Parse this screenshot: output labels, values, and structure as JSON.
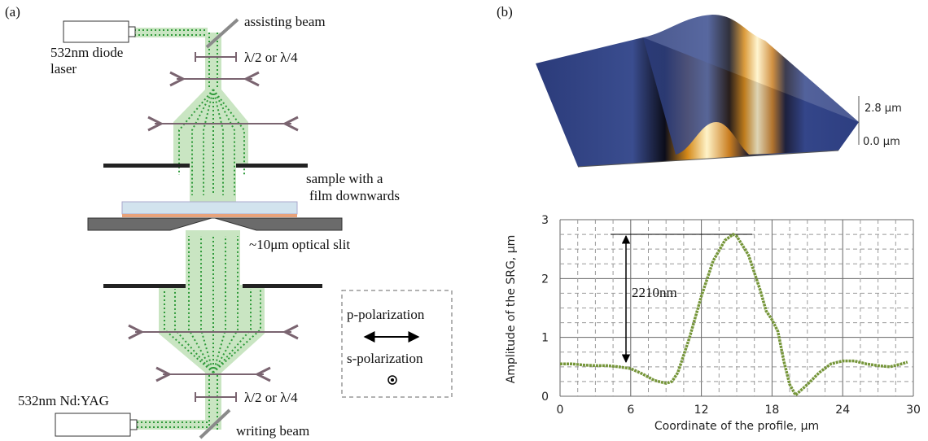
{
  "panel_a": {
    "label": "(a)",
    "assisting_beam": "assisting beam",
    "diode_laser": [
      "532nm diode",
      "laser"
    ],
    "waveplate_top": "λ/2 or λ/4",
    "sample": [
      "sample with a",
      "film downwards"
    ],
    "slit": "~10μm optical slit",
    "p_polarization": "p-polarization",
    "s_polarization": "s-polarization",
    "ndyag_laser": "532nm Nd:YAG",
    "waveplate_bottom": "λ/2 or λ/4",
    "writing_beam": "writing beam"
  },
  "panel_b": {
    "label": "(b)",
    "scale_top": "2.8 μm",
    "scale_bottom": "0.0 μm"
  },
  "chart_data": {
    "type": "line",
    "xlabel": "Coordinate of the  profile, μm",
    "ylabel": "Amplitude of the SRG, μm",
    "annotation": "2210nm",
    "x": [
      0,
      1,
      2,
      3,
      4,
      5,
      6,
      7,
      8,
      9,
      9.5,
      10,
      11,
      12,
      13,
      14,
      14.7,
      15,
      16,
      17,
      17.5,
      18,
      18.5,
      19,
      19.5,
      20,
      21,
      22,
      23,
      24,
      25,
      26,
      27,
      28,
      29,
      29.5
    ],
    "values": [
      0.55,
      0.55,
      0.53,
      0.52,
      0.52,
      0.5,
      0.47,
      0.38,
      0.27,
      0.22,
      0.25,
      0.4,
      1.0,
      1.7,
      2.3,
      2.65,
      2.75,
      2.72,
      2.4,
      1.8,
      1.45,
      1.3,
      1.1,
      0.6,
      0.2,
      0.02,
      0.2,
      0.4,
      0.55,
      0.6,
      0.6,
      0.55,
      0.52,
      0.5,
      0.55,
      0.58
    ],
    "color": "#76963a",
    "xlim": [
      0,
      30
    ],
    "ylim": [
      0,
      3
    ],
    "xticks": [
      0,
      6,
      12,
      18,
      24,
      30
    ],
    "yticks": [
      0,
      1,
      2,
      3
    ],
    "grid": true
  }
}
